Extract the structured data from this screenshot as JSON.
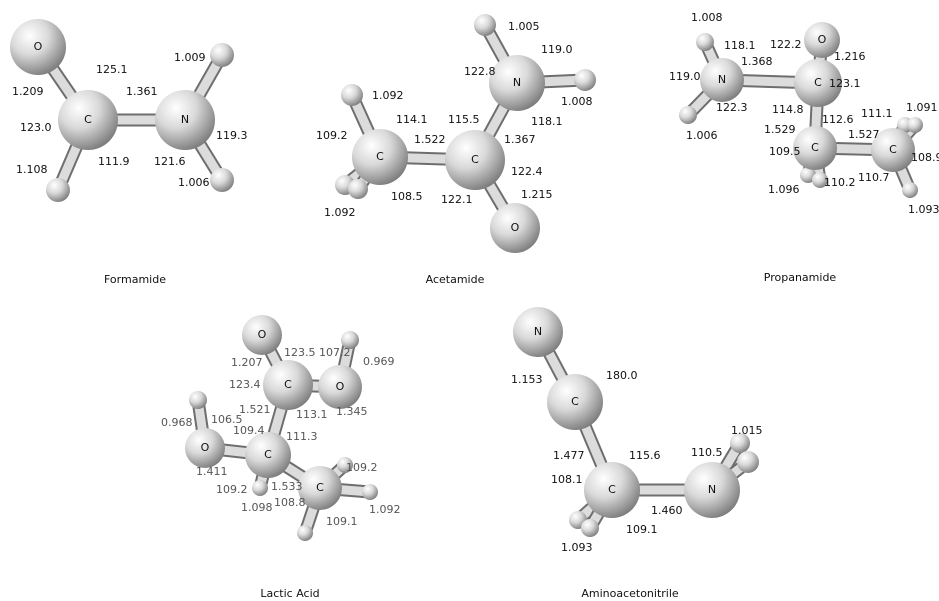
{
  "molecules": [
    {
      "name": "Formamide",
      "atoms": [
        "O",
        "C",
        "N"
      ],
      "measurements": [
        "125.1",
        "1.361",
        "1.009",
        "1.209",
        "123.0",
        "119.3",
        "121.6",
        "111.9",
        "1.108",
        "1.006"
      ]
    },
    {
      "name": "Acetamide",
      "atoms": [
        "N",
        "C",
        "C",
        "O"
      ],
      "measurements": [
        "1.005",
        "119.0",
        "122.8",
        "1.008",
        "118.1",
        "1.092",
        "114.1",
        "115.5",
        "1.522",
        "1.367",
        "109.2",
        "122.4",
        "108.5",
        "122.1",
        "1.215",
        "1.092"
      ]
    },
    {
      "name": "Propanamide",
      "atoms": [
        "N",
        "C",
        "O",
        "C",
        "C"
      ],
      "measurements": [
        "1.008",
        "118.1",
        "122.2",
        "1.368",
        "119.0",
        "1.216",
        "123.1",
        "114.8",
        "122.3",
        "1.529",
        "112.6",
        "111.1",
        "1.091",
        "1.006",
        "1.527",
        "109.5",
        "108.9",
        "1.096",
        "110.2",
        "110.7",
        "1.093"
      ]
    },
    {
      "name": "Lactic Acid",
      "atoms": [
        "O",
        "C",
        "O",
        "C",
        "O",
        "C"
      ],
      "measurements": [
        "1.207",
        "123.5",
        "107.2",
        "0.969",
        "123.4",
        "1.345",
        "1.521",
        "113.1",
        "0.968",
        "106.5",
        "109.4",
        "111.3",
        "109.2",
        "1.411",
        "109.2",
        "1.533",
        "1.098",
        "108.8",
        "1.092",
        "109.1"
      ]
    },
    {
      "name": "Aminoacetonitrile",
      "atoms": [
        "N",
        "C",
        "C",
        "N"
      ],
      "measurements": [
        "180.0",
        "1.153",
        "115.6",
        "110.5",
        "1.015",
        "1.477",
        "108.1",
        "1.460",
        "109.1",
        "1.093"
      ]
    }
  ]
}
